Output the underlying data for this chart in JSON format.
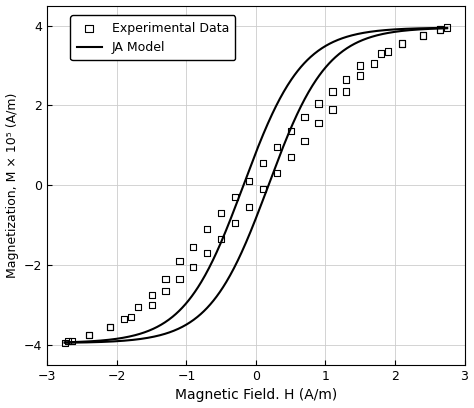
{
  "title": "",
  "xlabel": "Magnetic Field. H (A/m)",
  "ylabel": "Magnetization, M × 10⁵ (A/m)",
  "xlim": [
    -3,
    3
  ],
  "ylim": [
    -4.5,
    4.5
  ],
  "xticks": [
    -3,
    -2,
    -1,
    0,
    1,
    2,
    3
  ],
  "yticks": [
    -4,
    -2,
    0,
    2,
    4
  ],
  "background_color": "#ffffff",
  "grid_color": "#cccccc",
  "line_color": "#000000",
  "marker_color": "#000000",
  "legend_labels": [
    "Experimental Data",
    "JA Model"
  ],
  "ja_Ms": 3.95,
  "ja_Hc": 0.18,
  "ja_k": 0.85,
  "exp_upper_H": [
    -2.7,
    -2.4,
    -2.1,
    -1.9,
    -1.7,
    -1.5,
    -1.3,
    -1.1,
    -0.9,
    -0.7,
    -0.5,
    -0.3,
    -0.1,
    0.1,
    0.3,
    0.5,
    0.7,
    0.9,
    1.1,
    1.3,
    1.5,
    1.8,
    2.1,
    2.4,
    2.65,
    2.75
  ],
  "exp_upper_M": [
    -3.9,
    -3.75,
    -3.55,
    -3.35,
    -3.05,
    -2.75,
    -2.35,
    -1.9,
    -1.55,
    -1.1,
    -0.7,
    -0.3,
    0.1,
    0.55,
    0.95,
    1.35,
    1.7,
    2.05,
    2.35,
    2.65,
    3.0,
    3.3,
    3.55,
    3.75,
    3.9,
    3.95
  ],
  "exp_lower_H": [
    -2.75,
    -2.65,
    -2.4,
    -2.1,
    -1.8,
    -1.5,
    -1.3,
    -1.1,
    -0.9,
    -0.7,
    -0.5,
    -0.3,
    -0.1,
    0.1,
    0.3,
    0.5,
    0.7,
    0.9,
    1.1,
    1.3,
    1.5,
    1.7,
    1.9,
    2.1,
    2.4,
    2.65
  ],
  "exp_lower_M": [
    -3.95,
    -3.9,
    -3.75,
    -3.55,
    -3.3,
    -3.0,
    -2.65,
    -2.35,
    -2.05,
    -1.7,
    -1.35,
    -0.95,
    -0.55,
    -0.1,
    0.3,
    0.7,
    1.1,
    1.55,
    1.9,
    2.35,
    2.75,
    3.05,
    3.35,
    3.55,
    3.75,
    3.9
  ]
}
